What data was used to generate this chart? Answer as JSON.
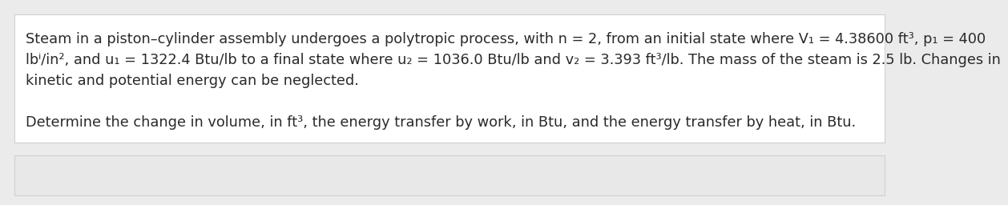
{
  "background_color": "#ebebeb",
  "box1_color": "#ffffff",
  "box1_edge_color": "#d0d0d0",
  "box2_color": "#e8e8e8",
  "box2_edge_color": "#d0d0d0",
  "text_color": "#2a2a2a",
  "font_size": 12.8,
  "line1": "Steam in a piston–cylinder assembly undergoes a polytropic process, with n = 2, from an initial state where V₁ = 4.38600 ft³, p₁ = 400",
  "line2": "lbⁱ/in², and u₁ = 1322.4 Btu/lb to a final state where u₂ = 1036.0 Btu/lb and v₂ = 3.393 ft³/lb. The mass of the steam is 2.5 lb. Changes in",
  "line2b": "lbᶠ/in², and u₁ = 1322.4 Btu/lb to a final state where u₂ = 1036.0 Btu/lb and v₂ = 3.393 ft³/lb. The mass of the steam is 2.5 lb. Changes in",
  "line3": "kinetic and potential energy can be neglected.",
  "line5": "Determine the change in volume, in ft³, the energy transfer by work, in Btu, and the energy transfer by heat, in Btu."
}
